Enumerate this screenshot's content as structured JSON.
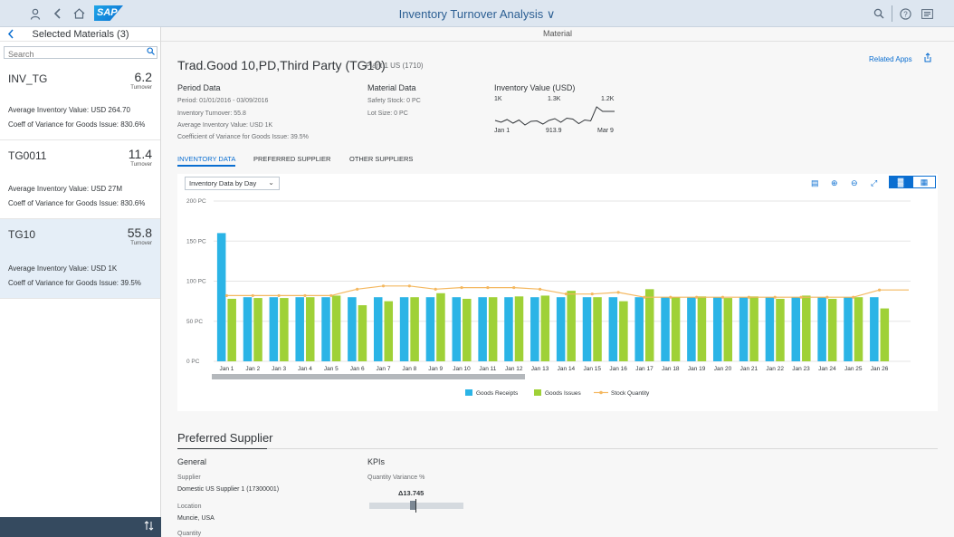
{
  "shell": {
    "title": "Inventory Turnover Analysis",
    "title_chevron": "∨",
    "icons": [
      "user-icon",
      "back-icon",
      "home-icon",
      "search-icon",
      "help-icon",
      "notifications-icon"
    ],
    "logo_text": "SAP"
  },
  "master": {
    "title": "Selected Materials (3)",
    "search_placeholder": "Search",
    "items": [
      {
        "name": "INV_TG",
        "value": "6.2",
        "unit": "Turnover",
        "line1": "Average Inventory Value: USD 264.70",
        "line2": "Coeff of Variance for Goods Issue: 830.6%"
      },
      {
        "name": "TG0011",
        "value": "11.4",
        "unit": "Turnover",
        "line1": "Average Inventory Value: USD 27M",
        "line2": "Coeff of Variance for Goods Issue: 830.6%"
      },
      {
        "name": "TG10",
        "value": "55.8",
        "unit": "Turnover",
        "line1": "Average Inventory Value: USD 1K",
        "line2": "Coeff of Variance for Goods Issue: 39.5%"
      }
    ]
  },
  "detail": {
    "topbar_title": "Material",
    "object_title": "Trad.Good 10,PD,Third Party (TG10)",
    "object_subtitle": "Plant 1 US (1710)",
    "related_apps": "Related Apps",
    "period": {
      "heading": "Period Data",
      "lines": [
        "Period: 01/01/2016 - 03/09/2016",
        "Inventory Turnover: 55.8",
        "Average Inventory Value: USD 1K",
        "Coefficient of Variance for Goods Issue: 39.5%"
      ]
    },
    "material": {
      "heading": "Material Data",
      "lines": [
        "Safety Stock: 0 PC",
        "Lot Size: 0 PC"
      ]
    },
    "inventory_value": {
      "heading": "Inventory Value (USD)",
      "top_labels": [
        "1K",
        "1.3K",
        "1.2K"
      ],
      "bottom_labels": [
        "Jan 1",
        "913.9",
        "Mar 9"
      ],
      "sparkline": [
        1000,
        960,
        1020,
        940,
        1010,
        900,
        980,
        990,
        920,
        1000,
        1040,
        960,
        1050,
        1030,
        930,
        1010,
        990,
        1300,
        1200,
        1200,
        1200
      ]
    },
    "tabs": [
      "INVENTORY DATA",
      "PREFERRED SUPPLIER",
      "OTHER SUPPLIERS"
    ],
    "chart_select": "Inventory Data by Day",
    "preferred": {
      "title": "Preferred Supplier",
      "general": "General",
      "supplier_label": "Supplier",
      "supplier_value": "Domestic US Supplier 1 (17300001)",
      "location_label": "Location",
      "location_value": "Muncie, USA",
      "quantity_label": "Quantity",
      "kpis": "KPIs",
      "qv_label": "Quantity Variance %",
      "qv_value": "Δ13.745",
      "qv_fraction": 0.49
    }
  },
  "colors": {
    "receipts": "#2bb4e6",
    "issues": "#9fd137",
    "stock": "#f4b860",
    "accent": "#0a6ed1",
    "shell_bg": "#dde6f0"
  },
  "chart_data": {
    "type": "bar",
    "ylabel": "",
    "xlabel": "",
    "yticks": [
      "0 PC",
      "50 PC",
      "100 PC",
      "150 PC",
      "200 PC"
    ],
    "ylim": [
      0,
      200
    ],
    "grid": true,
    "legend_position": "bottom",
    "categories": [
      "Jan 1",
      "Jan 2",
      "Jan 3",
      "Jan 4",
      "Jan 5",
      "Jan 6",
      "Jan 7",
      "Jan 8",
      "Jan 9",
      "Jan 10",
      "Jan 11",
      "Jan 12",
      "Jan 13",
      "Jan 14",
      "Jan 15",
      "Jan 16",
      "Jan 17",
      "Jan 18",
      "Jan 19",
      "Jan 20",
      "Jan 21",
      "Jan 22",
      "Jan 23",
      "Jan 24",
      "Jan 25",
      "Jan 26"
    ],
    "series": [
      {
        "name": "Goods Receipts",
        "type": "bar",
        "values": [
          160,
          80,
          80,
          80,
          80,
          80,
          80,
          80,
          80,
          80,
          80,
          80,
          80,
          80,
          80,
          80,
          80,
          80,
          80,
          80,
          80,
          80,
          80,
          80,
          80,
          80
        ]
      },
      {
        "name": "Goods Issues",
        "type": "bar",
        "values": [
          78,
          79,
          79,
          80,
          82,
          70,
          75,
          80,
          85,
          78,
          80,
          81,
          82,
          88,
          80,
          75,
          90,
          80,
          81,
          79,
          81,
          78,
          82,
          78,
          80,
          66
        ]
      },
      {
        "name": "Stock Quantity",
        "type": "line",
        "values": [
          82,
          82,
          82,
          82,
          82,
          90,
          94,
          94,
          90,
          92,
          92,
          92,
          90,
          84,
          84,
          86,
          80,
          80,
          80,
          80,
          80,
          80,
          80,
          80,
          80,
          89
        ]
      }
    ]
  }
}
